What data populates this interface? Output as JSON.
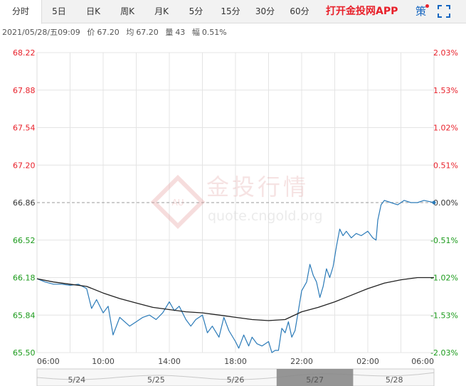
{
  "tabs": [
    {
      "label": "分时",
      "active": true
    },
    {
      "label": "5日"
    },
    {
      "label": "日K"
    },
    {
      "label": "周K"
    },
    {
      "label": "月K"
    },
    {
      "label": "5分"
    },
    {
      "label": "15分"
    },
    {
      "label": "30分"
    },
    {
      "label": "60分"
    }
  ],
  "promo_label": "打开金投网APP",
  "strategy_label": "策",
  "info": {
    "datetime": "2021/05/28/五09:09",
    "price_label": "价",
    "price": "67.20",
    "avg_label": "均",
    "avg": "67.20",
    "volume_label": "量",
    "volume": "43",
    "change_label": "幅",
    "change": "0.51%"
  },
  "watermark": {
    "cn": "金投行情",
    "url": "quote.cngold.org",
    "logo_text": "AU"
  },
  "colors": {
    "up": "#e8202a",
    "down": "#1a9a1a",
    "price_line": "#2a7ab8",
    "avg_line": "#222222",
    "grid": "#e4e4e4",
    "ref_line": "#999999"
  },
  "chart_data": {
    "type": "line",
    "title": "",
    "y_ticks": [
      "68.22",
      "67.88",
      "67.54",
      "67.20",
      "66.86",
      "66.52",
      "66.18",
      "65.84",
      "65.50"
    ],
    "pct_ticks": [
      "2.03%",
      "1.53%",
      "1.02%",
      "0.51%",
      "0.00%",
      "-0.51%",
      "-1.02%",
      "-1.53%",
      "-2.03%"
    ],
    "ylim": [
      65.5,
      68.22
    ],
    "ref_price": 66.86,
    "x_ticks": [
      "06:00",
      "10:00",
      "14:00",
      "18:00",
      "22:00",
      "02:00",
      "06:00"
    ],
    "x_hours": [
      0,
      4,
      8,
      12,
      16,
      20,
      24
    ],
    "series": [
      {
        "points": [
          [
            0,
            66.17
          ],
          [
            0.5,
            66.14
          ],
          [
            1,
            66.12
          ],
          [
            1.5,
            66.12
          ],
          [
            2,
            66.11
          ],
          [
            2.5,
            66.12
          ],
          [
            3,
            66.08
          ],
          [
            3.3,
            65.9
          ],
          [
            3.6,
            65.98
          ],
          [
            4,
            65.86
          ],
          [
            4.3,
            65.92
          ],
          [
            4.6,
            65.66
          ],
          [
            5,
            65.82
          ],
          [
            5.3,
            65.78
          ],
          [
            5.6,
            65.74
          ],
          [
            6,
            65.78
          ],
          [
            6.4,
            65.82
          ],
          [
            6.8,
            65.84
          ],
          [
            7.2,
            65.8
          ],
          [
            7.6,
            65.86
          ],
          [
            8,
            65.96
          ],
          [
            8.3,
            65.88
          ],
          [
            8.6,
            65.92
          ],
          [
            9,
            65.8
          ],
          [
            9.3,
            65.74
          ],
          [
            9.6,
            65.8
          ],
          [
            10,
            65.84
          ],
          [
            10.3,
            65.68
          ],
          [
            10.6,
            65.74
          ],
          [
            11,
            65.64
          ],
          [
            11.3,
            65.82
          ],
          [
            11.6,
            65.7
          ],
          [
            12,
            65.6
          ],
          [
            12.2,
            65.54
          ],
          [
            12.5,
            65.66
          ],
          [
            12.8,
            65.56
          ],
          [
            13,
            65.64
          ],
          [
            13.3,
            65.58
          ],
          [
            13.6,
            65.56
          ],
          [
            14,
            65.6
          ],
          [
            14.2,
            65.5
          ],
          [
            14.4,
            65.52
          ],
          [
            14.6,
            65.52
          ],
          [
            14.8,
            65.72
          ],
          [
            15,
            65.68
          ],
          [
            15.2,
            65.78
          ],
          [
            15.4,
            65.64
          ],
          [
            15.6,
            65.7
          ],
          [
            15.8,
            65.88
          ],
          [
            16,
            66.06
          ],
          [
            16.3,
            66.14
          ],
          [
            16.5,
            66.3
          ],
          [
            16.7,
            66.2
          ],
          [
            16.9,
            66.14
          ],
          [
            17.1,
            66.0
          ],
          [
            17.3,
            66.1
          ],
          [
            17.5,
            66.26
          ],
          [
            17.7,
            66.18
          ],
          [
            17.9,
            66.28
          ],
          [
            18.1,
            66.46
          ],
          [
            18.3,
            66.62
          ],
          [
            18.5,
            66.56
          ],
          [
            18.7,
            66.6
          ],
          [
            19,
            66.54
          ],
          [
            19.3,
            66.58
          ],
          [
            19.6,
            66.56
          ],
          [
            20,
            66.6
          ],
          [
            20.3,
            66.54
          ],
          [
            20.5,
            66.52
          ],
          [
            20.6,
            66.7
          ],
          [
            20.8,
            66.84
          ],
          [
            21,
            66.88
          ],
          [
            21.4,
            66.86
          ],
          [
            21.8,
            66.84
          ],
          [
            22.2,
            66.88
          ],
          [
            22.6,
            66.86
          ],
          [
            23,
            66.86
          ],
          [
            23.4,
            66.88
          ],
          [
            24,
            66.86
          ]
        ]
      },
      {
        "points": [
          [
            0,
            66.17
          ],
          [
            1,
            66.14
          ],
          [
            2,
            66.12
          ],
          [
            3,
            66.1
          ],
          [
            4,
            66.04
          ],
          [
            5,
            65.99
          ],
          [
            6,
            65.95
          ],
          [
            7,
            65.91
          ],
          [
            8,
            65.89
          ],
          [
            9,
            65.87
          ],
          [
            10,
            65.86
          ],
          [
            11,
            65.84
          ],
          [
            12,
            65.82
          ],
          [
            13,
            65.8
          ],
          [
            14,
            65.79
          ],
          [
            15,
            65.8
          ],
          [
            16,
            65.87
          ],
          [
            17,
            65.91
          ],
          [
            18,
            65.96
          ],
          [
            19,
            66.02
          ],
          [
            20,
            66.08
          ],
          [
            21,
            66.13
          ],
          [
            22,
            66.16
          ],
          [
            23,
            66.18
          ],
          [
            24,
            66.18
          ]
        ]
      }
    ],
    "navigator": {
      "labels": [
        "5/24",
        "5/25",
        "5/26",
        "5/27",
        "5/28"
      ],
      "selected_index": 3
    }
  }
}
